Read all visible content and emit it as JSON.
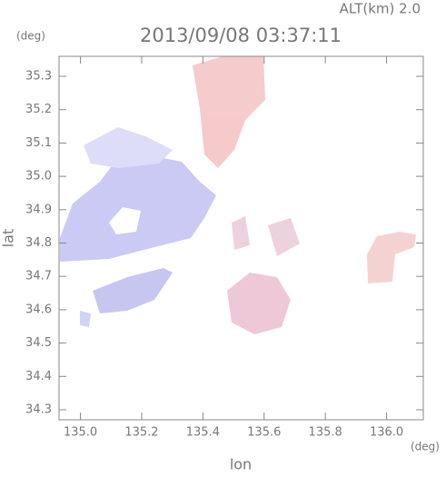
{
  "chart_data": {
    "type": "heatmap",
    "title": "2013/09/08 03:37:11",
    "subtitle": "ALT(km) 2.0",
    "x_label": "lon",
    "x_unit": "(deg)",
    "y_label": "lat",
    "y_unit": "(deg)",
    "xlim": [
      134.93,
      136.12
    ],
    "xticks": [
      {
        "value": 135.0,
        "label": "135.0"
      },
      135.2,
      135.4,
      135.6,
      135.8,
      {
        "value": 136.0,
        "label": "136.0"
      }
    ],
    "ylim": [
      34.27,
      35.36
    ],
    "yticks": [
      34.3,
      34.4,
      34.5,
      34.6,
      34.7,
      34.8,
      34.9,
      {
        "value": 35.0,
        "label": "35.0"
      },
      35.1,
      35.2,
      35.3
    ]
  }
}
